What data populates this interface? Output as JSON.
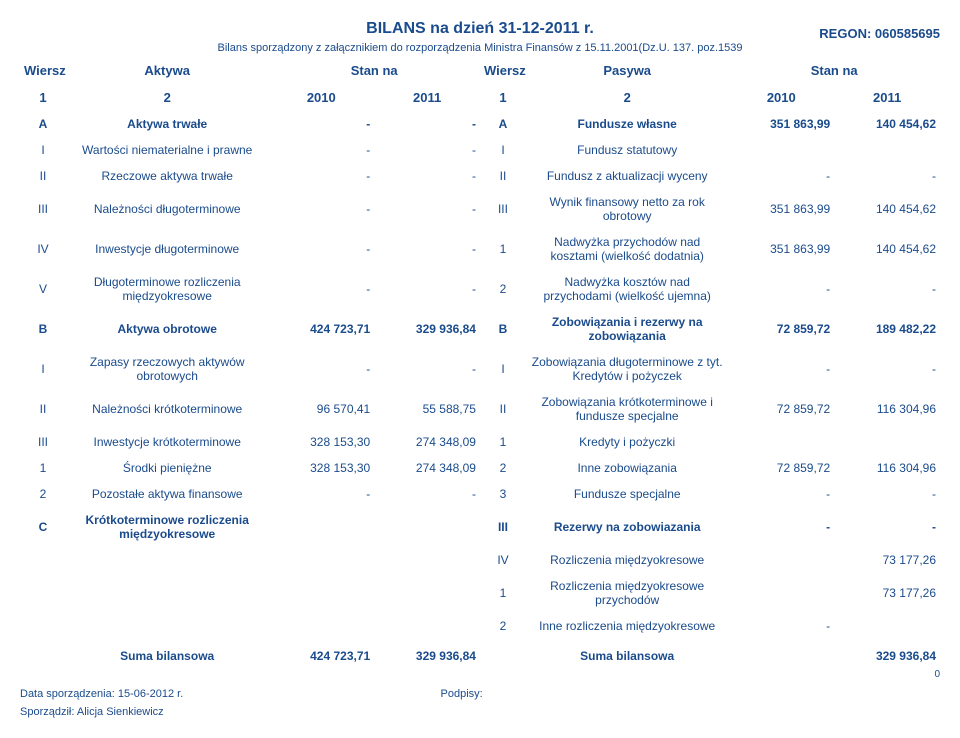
{
  "header": {
    "title": "BILANS na dzień 31-12-2011 r.",
    "subtitle": "Bilans sporządzony z załącznikiem do rozporządzenia Ministra Finansów z 15.11.2001(Dz.U. 137. poz.1539",
    "regon_label": "REGON:",
    "regon_value": "060585695"
  },
  "thead": {
    "wiersz": "Wiersz",
    "aktywa": "Aktywa",
    "stan_na": "Stan na",
    "pasywa": "Pasywa",
    "c1": "1",
    "c2": "2",
    "y2010": "2010",
    "y2011": "2011"
  },
  "rows": [
    {
      "la": "A",
      "na": "Aktywa trwałe",
      "va": "-",
      "wa": "-",
      "lb": "A",
      "nb": "Fundusze własne",
      "vb": "351 863,99",
      "wb": "140 454,62",
      "bold": true
    },
    {
      "la": "I",
      "na": "Wartości niematerialne i prawne",
      "va": "-",
      "wa": "-",
      "lb": "I",
      "nb": "Fundusz statutowy",
      "vb": "",
      "wb": ""
    },
    {
      "la": "II",
      "na": "Rzeczowe aktywa trwałe",
      "va": "-",
      "wa": "-",
      "lb": "II",
      "nb": "Fundusz z aktualizacji wyceny",
      "vb": "-",
      "wb": "-"
    },
    {
      "la": "III",
      "na": "Należności długoterminowe",
      "va": "-",
      "wa": "-",
      "lb": "III",
      "nb": "Wynik finansowy netto za rok obrotowy",
      "vb": "351 863,99",
      "wb": "140 454,62"
    },
    {
      "la": "IV",
      "na": "Inwestycje długoterminowe",
      "va": "-",
      "wa": "-",
      "lb": "1",
      "nb": "Nadwyżka przychodów nad kosztami (wielkość dodatnia)",
      "vb": "351 863,99",
      "wb": "140 454,62"
    },
    {
      "la": "V",
      "na": "Długoterminowe rozliczenia międzyokresowe",
      "va": "-",
      "wa": "-",
      "lb": "2",
      "nb": "Nadwyżka kosztów nad przychodami (wielkość ujemna)",
      "vb": "-",
      "wb": "-"
    },
    {
      "la": "B",
      "na": "Aktywa obrotowe",
      "va": "424 723,71",
      "wa": "329 936,84",
      "lb": "B",
      "nb": "Zobowiązania i rezerwy na zobowiązania",
      "vb": "72 859,72",
      "wb": "189 482,22",
      "bold": true
    },
    {
      "la": "I",
      "na": "Zapasy rzeczowych aktywów obrotowych",
      "va": "-",
      "wa": "-",
      "lb": "I",
      "nb": "Zobowiązania długoterminowe z tyt. Kredytów i pożyczek",
      "vb": "-",
      "wb": "-"
    },
    {
      "la": "II",
      "na": "Należności krótkoterminowe",
      "va": "96 570,41",
      "wa": "55 588,75",
      "lb": "II",
      "nb": "Zobowiązania krótkoterminowe i fundusze specjalne",
      "vb": "72 859,72",
      "wb": "116 304,96"
    },
    {
      "la": "III",
      "na": "Inwestycje krótkoterminowe",
      "va": "328 153,30",
      "wa": "274 348,09",
      "lb": "1",
      "nb": "Kredyty i pożyczki",
      "vb": "",
      "wb": ""
    },
    {
      "la": "1",
      "na": "Środki pieniężne",
      "va": "328 153,30",
      "wa": "274 348,09",
      "lb": "2",
      "nb": "Inne zobowiązania",
      "vb": "72 859,72",
      "wb": "116 304,96"
    },
    {
      "la": "2",
      "na": "Pozostałe aktywa finansowe",
      "va": "-",
      "wa": "-",
      "lb": "3",
      "nb": "Fundusze specjalne",
      "vb": "-",
      "wb": "-"
    },
    {
      "la": "C",
      "na": "Krótkoterminowe rozliczenia międzyokresowe",
      "va": "",
      "wa": "",
      "lb": "III",
      "nb": "Rezerwy na zobowiazania",
      "vb": "-",
      "wb": "-",
      "bold": true
    },
    {
      "la": "",
      "na": "",
      "va": "",
      "wa": "",
      "lb": "IV",
      "nb": "Rozliczenia międzyokresowe",
      "vb": "",
      "wb": "73 177,26"
    },
    {
      "la": "",
      "na": "",
      "va": "",
      "wa": "",
      "lb": "1",
      "nb": "Rozliczenia międzyokresowe przychodów",
      "vb": "",
      "wb": "73 177,26"
    },
    {
      "la": "",
      "na": "",
      "va": "",
      "wa": "",
      "lb": "2",
      "nb": "Inne rozliczenia międzyokresowe",
      "vb": "-",
      "wb": ""
    }
  ],
  "suma": {
    "label": "Suma bilansowa",
    "va": "424 723,71",
    "wa": "329 936,84",
    "vb": "",
    "wb": "329 936,84"
  },
  "footer": {
    "date_label": "Data sporządzenia: 15-06-2012 r.",
    "podpisy": "Podpisy:",
    "sporz": "Sporządził: Alicja Sienkiewicz",
    "zero": "0"
  },
  "colors": {
    "text": "#1a4b8c",
    "bg": "#ffffff"
  }
}
